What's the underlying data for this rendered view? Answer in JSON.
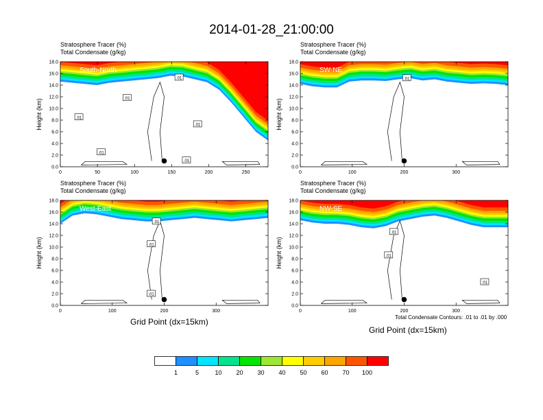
{
  "title": "2014-01-28_21:00:00",
  "field_title_1": "Stratosphere Tracer   (%)",
  "field_title_2": "Total Condensate   (g/kg)",
  "ylabel": "Height (km)",
  "xlabel": "Grid Point (dx=15km)",
  "contour_note": "Total Condensate Contours: .01 to .01 by .000",
  "contour_label": ".01",
  "colors": {
    "levels": [
      "#ffffff",
      "#1e90ff",
      "#00e5ff",
      "#00e58c",
      "#00e600",
      "#9de632",
      "#ffff00",
      "#ffcc00",
      "#ffa500",
      "#ff5500",
      "#ff0000"
    ],
    "marker": "#000000"
  },
  "colorbar": {
    "tick_labels": [
      "1",
      "5",
      "10",
      "20",
      "30",
      "40",
      "50",
      "60",
      "70",
      "100"
    ]
  },
  "chart_data": [
    {
      "type": "heatmap",
      "cross_section": "South-North",
      "xlim": [
        0,
        280
      ],
      "ylim": [
        0,
        18
      ],
      "x_ticks": [
        0,
        50,
        100,
        150,
        200,
        250
      ],
      "y_ticks": [
        "0.0",
        "2.0",
        "4.0",
        "6.0",
        "8.0",
        "10.0",
        "12.0",
        "14.0",
        "16.0",
        "18.0"
      ],
      "tropopause_km": [
        14.6,
        14.4,
        14.2,
        14.0,
        14.4,
        14.6,
        14.8,
        15.0,
        15.2,
        15.6,
        15.5,
        15.0,
        14.5,
        13.2,
        11.0,
        8.5,
        6.0,
        4.5
      ],
      "marker_x": 140,
      "marker_y": 1.0,
      "contour_labels_xy": [
        [
          25,
          8.5
        ],
        [
          55,
          2.5
        ],
        [
          90,
          11.8
        ],
        [
          160,
          15.3
        ],
        [
          185,
          7.3
        ],
        [
          170,
          1.1
        ]
      ]
    },
    {
      "type": "heatmap",
      "cross_section": "SW-NE",
      "xlim": [
        0,
        400
      ],
      "ylim": [
        0,
        18
      ],
      "x_ticks": [
        0,
        100,
        200,
        300
      ],
      "y_ticks": [
        "0.0",
        "2.0",
        "4.0",
        "6.0",
        "8.0",
        "10.0",
        "12.0",
        "14.0",
        "16.0",
        "18.0"
      ],
      "tropopause_km": [
        14.2,
        13.8,
        13.6,
        13.6,
        14.6,
        14.8,
        14.8,
        14.7,
        15.0,
        15.2,
        14.8,
        15.0,
        14.6,
        14.4,
        14.2,
        14.3,
        14.2,
        14.0
      ],
      "marker_x": 200,
      "marker_y": 1.0,
      "contour_labels_xy": [
        [
          205,
          15.2
        ]
      ]
    },
    {
      "type": "heatmap",
      "cross_section": "West-East",
      "xlim": [
        0,
        400
      ],
      "ylim": [
        0,
        18
      ],
      "x_ticks": [
        0,
        100,
        200,
        300
      ],
      "y_ticks": [
        "0.0",
        "2.0",
        "4.0",
        "6.0",
        "8.0",
        "10.0",
        "12.0",
        "14.0",
        "16.0",
        "18.0"
      ],
      "tropopause_km": [
        14.0,
        15.4,
        15.8,
        15.6,
        15.2,
        14.8,
        14.6,
        14.4,
        14.4,
        14.6,
        14.8,
        15.0,
        14.8,
        14.6,
        14.4,
        14.6,
        14.8,
        15.0
      ],
      "marker_x": 200,
      "marker_y": 1.0,
      "contour_labels_xy": [
        [
          185,
          14.4
        ],
        [
          175,
          10.5
        ],
        [
          175,
          2.0
        ]
      ]
    },
    {
      "type": "heatmap",
      "cross_section": "NW-SE",
      "xlim": [
        0,
        400
      ],
      "ylim": [
        0,
        18
      ],
      "x_ticks": [
        0,
        100,
        200,
        300
      ],
      "y_ticks": [
        "0.0",
        "2.0",
        "4.0",
        "6.0",
        "8.0",
        "10.0",
        "12.0",
        "14.0",
        "16.0",
        "18.0"
      ],
      "tropopause_km": [
        14.6,
        14.2,
        14.0,
        14.0,
        13.8,
        13.4,
        13.2,
        13.6,
        14.4,
        14.8,
        15.2,
        15.4,
        15.0,
        14.4,
        13.8,
        13.4,
        13.4,
        13.4
      ],
      "marker_x": 200,
      "marker_y": 1.0,
      "contour_labels_xy": [
        [
          180,
          12.6
        ],
        [
          170,
          8.6
        ],
        [
          355,
          4.0
        ]
      ]
    }
  ]
}
